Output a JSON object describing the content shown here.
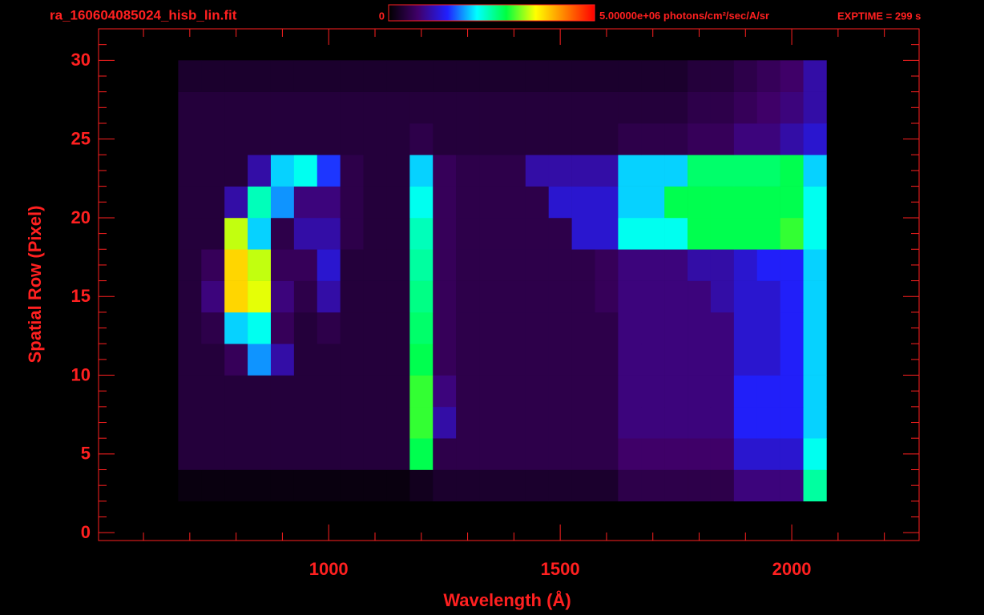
{
  "chart_data": {
    "type": "heatmap",
    "title": "ra_160604085024_hisb_lin.fit",
    "colorbar": {
      "min": 0,
      "max": {
        "value": 5000000,
        "label": "5.00000e+06"
      },
      "units": "photons/cm²/sec/A/sr",
      "colors": [
        "#000000",
        "#40006a",
        "#2020ff",
        "#00ffff",
        "#00ff40",
        "#ffff00",
        "#ff8000",
        "#ff0000"
      ]
    },
    "annotation": "EXPTIME = 299 s",
    "x_label": "Wavelength (Å)",
    "y_label": "Spatial Row (Pixel)",
    "axis_color": "#ff2020",
    "xlim": [
      503,
      2275
    ],
    "ylim": [
      -0.5,
      32
    ],
    "xticks": [
      1000,
      1500,
      2000
    ],
    "yticks": [
      0,
      5,
      10,
      15,
      20,
      25,
      30
    ],
    "xminorticks": [
      600,
      700,
      800,
      900,
      1100,
      1200,
      1300,
      1400,
      1600,
      1700,
      1800,
      1900,
      2100,
      2200
    ],
    "yminorticks": [
      1,
      2,
      3,
      4,
      6,
      7,
      8,
      9,
      11,
      12,
      13,
      14,
      16,
      17,
      18,
      19,
      21,
      22,
      23,
      24,
      26,
      27,
      28,
      29,
      31
    ],
    "x_edges": [
      675,
      725,
      775,
      825,
      875,
      925,
      975,
      1025,
      1075,
      1125,
      1175,
      1225,
      1275,
      1325,
      1375,
      1425,
      1475,
      1525,
      1575,
      1625,
      1675,
      1725,
      1775,
      1825,
      1875,
      1925,
      1975,
      2025,
      2075
    ],
    "y_edges": [
      2,
      4,
      6,
      8,
      10,
      12,
      14,
      16,
      18,
      20,
      22,
      24,
      26,
      28,
      30
    ],
    "z": [
      [
        100000.0,
        100000.0,
        100000.0,
        100000.0,
        100000.0,
        100000.0,
        100000.0,
        100000.0,
        100000.0,
        100000.0,
        200000.0,
        300000.0,
        300000.0,
        300000.0,
        300000.0,
        300000.0,
        300000.0,
        300000.0,
        300000.0,
        500000.0,
        500000.0,
        500000.0,
        500000.0,
        500000.0,
        800000.0,
        800000.0,
        800000.0,
        2500000.0
      ],
      [
        400000.0,
        400000.0,
        400000.0,
        400000.0,
        400000.0,
        400000.0,
        400000.0,
        400000.0,
        400000.0,
        400000.0,
        2800000.0,
        500000.0,
        500000.0,
        500000.0,
        500000.0,
        500000.0,
        500000.0,
        500000.0,
        500000.0,
        700000.0,
        700000.0,
        700000.0,
        700000.0,
        700000.0,
        1200000.0,
        1200000.0,
        1200000.0,
        2200000.0
      ],
      [
        400000.0,
        400000.0,
        400000.0,
        400000.0,
        400000.0,
        400000.0,
        400000.0,
        400000.0,
        400000.0,
        400000.0,
        3000000.0,
        1000000.0,
        500000.0,
        500000.0,
        500000.0,
        500000.0,
        500000.0,
        500000.0,
        500000.0,
        800000.0,
        800000.0,
        800000.0,
        800000.0,
        800000.0,
        1400000.0,
        1400000.0,
        1400000.0,
        2000000.0
      ],
      [
        400000.0,
        400000.0,
        400000.0,
        400000.0,
        400000.0,
        400000.0,
        400000.0,
        400000.0,
        400000.0,
        400000.0,
        3000000.0,
        800000.0,
        500000.0,
        500000.0,
        500000.0,
        500000.0,
        500000.0,
        500000.0,
        500000.0,
        800000.0,
        800000.0,
        800000.0,
        800000.0,
        800000.0,
        1400000.0,
        1400000.0,
        1400000.0,
        2000000.0
      ],
      [
        400000.0,
        400000.0,
        600000.0,
        1800000.0,
        1000000.0,
        400000.0,
        400000.0,
        400000.0,
        400000.0,
        400000.0,
        2800000.0,
        600000.0,
        500000.0,
        500000.0,
        500000.0,
        500000.0,
        500000.0,
        500000.0,
        500000.0,
        800000.0,
        800000.0,
        800000.0,
        800000.0,
        800000.0,
        1200000.0,
        1200000.0,
        1400000.0,
        2000000.0
      ],
      [
        400000.0,
        500000.0,
        2000000.0,
        2200000.0,
        600000.0,
        400000.0,
        500000.0,
        400000.0,
        400000.0,
        400000.0,
        2700000.0,
        600000.0,
        500000.0,
        500000.0,
        500000.0,
        500000.0,
        500000.0,
        500000.0,
        500000.0,
        800000.0,
        800000.0,
        800000.0,
        800000.0,
        800000.0,
        1200000.0,
        1200000.0,
        1400000.0,
        2000000.0
      ],
      [
        400000.0,
        800000.0,
        3800000.0,
        3500000.0,
        800000.0,
        500000.0,
        1000000.0,
        400000.0,
        400000.0,
        400000.0,
        2600000.0,
        600000.0,
        500000.0,
        500000.0,
        500000.0,
        500000.0,
        500000.0,
        500000.0,
        600000.0,
        800000.0,
        800000.0,
        800000.0,
        800000.0,
        1000000.0,
        1200000.0,
        1200000.0,
        1400000.0,
        2000000.0
      ],
      [
        400000.0,
        600000.0,
        3800000.0,
        3400000.0,
        600000.0,
        600000.0,
        1200000.0,
        400000.0,
        400000.0,
        400000.0,
        2500000.0,
        600000.0,
        500000.0,
        500000.0,
        500000.0,
        500000.0,
        500000.0,
        500000.0,
        600000.0,
        800000.0,
        800000.0,
        800000.0,
        1000000.0,
        1000000.0,
        1200000.0,
        1400000.0,
        1400000.0,
        2000000.0
      ],
      [
        400000.0,
        400000.0,
        3400000.0,
        2000000.0,
        500000.0,
        1000000.0,
        1000000.0,
        500000.0,
        400000.0,
        400000.0,
        2400000.0,
        600000.0,
        500000.0,
        500000.0,
        500000.0,
        500000.0,
        500000.0,
        1200000.0,
        1200000.0,
        2200000.0,
        2200000.0,
        2200000.0,
        2800000.0,
        2800000.0,
        2800000.0,
        2800000.0,
        3000000.0,
        2200000.0
      ],
      [
        400000.0,
        400000.0,
        1000000.0,
        2400000.0,
        1800000.0,
        800000.0,
        800000.0,
        500000.0,
        400000.0,
        400000.0,
        2200000.0,
        600000.0,
        500000.0,
        500000.0,
        500000.0,
        500000.0,
        1200000.0,
        1200000.0,
        1200000.0,
        2000000.0,
        2000000.0,
        2800000.0,
        2800000.0,
        2800000.0,
        2800000.0,
        2800000.0,
        2800000.0,
        2200000.0
      ],
      [
        400000.0,
        400000.0,
        400000.0,
        1000000.0,
        2000000.0,
        2200000.0,
        1500000.0,
        500000.0,
        400000.0,
        400000.0,
        2000000.0,
        600000.0,
        500000.0,
        500000.0,
        500000.0,
        1000000.0,
        1000000.0,
        1000000.0,
        1000000.0,
        2000000.0,
        2000000.0,
        2000000.0,
        2700000.0,
        2700000.0,
        2700000.0,
        2700000.0,
        2800000.0,
        2000000.0
      ],
      [
        400000.0,
        400000.0,
        400000.0,
        400000.0,
        400000.0,
        400000.0,
        400000.0,
        400000.0,
        400000.0,
        400000.0,
        500000.0,
        400000.0,
        400000.0,
        400000.0,
        400000.0,
        400000.0,
        400000.0,
        400000.0,
        400000.0,
        500000.0,
        500000.0,
        500000.0,
        600000.0,
        600000.0,
        800000.0,
        800000.0,
        1000000.0,
        1200000.0
      ],
      [
        400000.0,
        400000.0,
        400000.0,
        400000.0,
        400000.0,
        400000.0,
        400000.0,
        400000.0,
        400000.0,
        400000.0,
        400000.0,
        400000.0,
        400000.0,
        400000.0,
        400000.0,
        400000.0,
        400000.0,
        400000.0,
        400000.0,
        400000.0,
        400000.0,
        400000.0,
        500000.0,
        500000.0,
        600000.0,
        700000.0,
        800000.0,
        1000000.0
      ],
      [
        300000.0,
        300000.0,
        300000.0,
        300000.0,
        300000.0,
        300000.0,
        300000.0,
        300000.0,
        300000.0,
        300000.0,
        300000.0,
        300000.0,
        300000.0,
        300000.0,
        300000.0,
        300000.0,
        300000.0,
        300000.0,
        300000.0,
        300000.0,
        300000.0,
        300000.0,
        400000.0,
        400000.0,
        500000.0,
        600000.0,
        700000.0,
        1000000.0
      ]
    ]
  }
}
